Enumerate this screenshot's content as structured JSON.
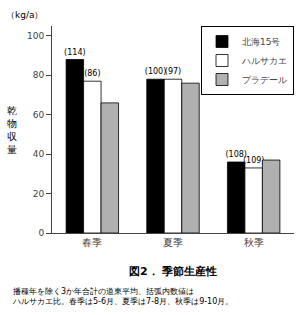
{
  "chart_data": {
    "type": "bar",
    "title": "図2． 季節生産性",
    "caption": [
      "播種年を除く3か年合計の道東平均、括弧内数値は",
      "ハルサカエ比。春季は5-6月、夏季は7-8月、秋季は9-10月。"
    ],
    "ylabel": "乾物収量",
    "unit_label": "（kg/a）",
    "categories": [
      "春季",
      "夏季",
      "秋季"
    ],
    "series": [
      {
        "name": "北海15号",
        "color": "#000000",
        "values": [
          88,
          78,
          36
        ],
        "annotations": [
          "(114)",
          "(100)",
          "(108)"
        ]
      },
      {
        "name": "ハルサカエ",
        "color": "#ffffff",
        "values": [
          77,
          78,
          33
        ],
        "annotations": [
          "(86)",
          "(97)",
          "(109)"
        ]
      },
      {
        "name": "プラデール",
        "color": "#b0b0b0",
        "values": [
          66,
          76,
          37
        ],
        "annotations": [
          null,
          null,
          null
        ]
      }
    ],
    "ylim": [
      0,
      105
    ],
    "yticks": [
      0,
      20,
      40,
      60,
      80,
      100
    ],
    "grid": false,
    "legend": "upper right"
  }
}
